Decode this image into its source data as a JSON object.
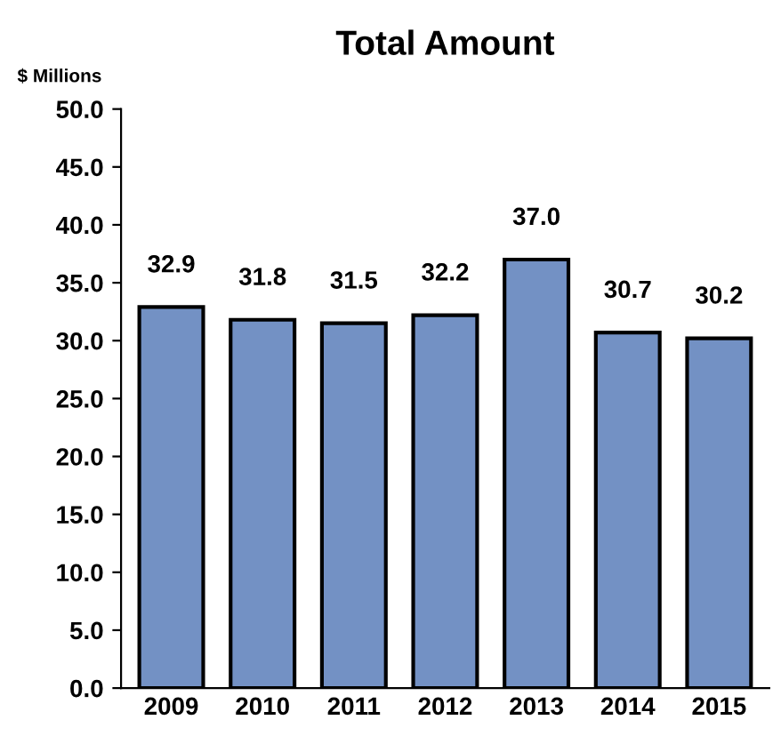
{
  "chart_data": {
    "type": "bar",
    "title": "Total Amount",
    "ylabel": "$ Millions",
    "categories": [
      "2009",
      "2010",
      "2011",
      "2012",
      "2013",
      "2014",
      "2015"
    ],
    "values": [
      32.9,
      31.8,
      31.5,
      32.2,
      37.0,
      30.7,
      30.2
    ],
    "value_labels": [
      "32.9",
      "31.8",
      "31.5",
      "32.2",
      "37.0",
      "30.7",
      "30.2"
    ],
    "color": "#7391c4",
    "ylim": [
      0,
      50
    ],
    "yticks": [
      {
        "value": 0,
        "label": "0.0"
      },
      {
        "value": 5,
        "label": "5.0"
      },
      {
        "value": 10,
        "label": "10.0"
      },
      {
        "value": 15,
        "label": "15.0"
      },
      {
        "value": 20,
        "label": "20.0"
      },
      {
        "value": 25,
        "label": "25.0"
      },
      {
        "value": 30,
        "label": "30.0"
      },
      {
        "value": 35,
        "label": "35.0"
      },
      {
        "value": 40,
        "label": "40.0"
      },
      {
        "value": 45,
        "label": "45.0"
      },
      {
        "value": 50,
        "label": "50.0"
      }
    ],
    "grid": false,
    "legend": false
  }
}
